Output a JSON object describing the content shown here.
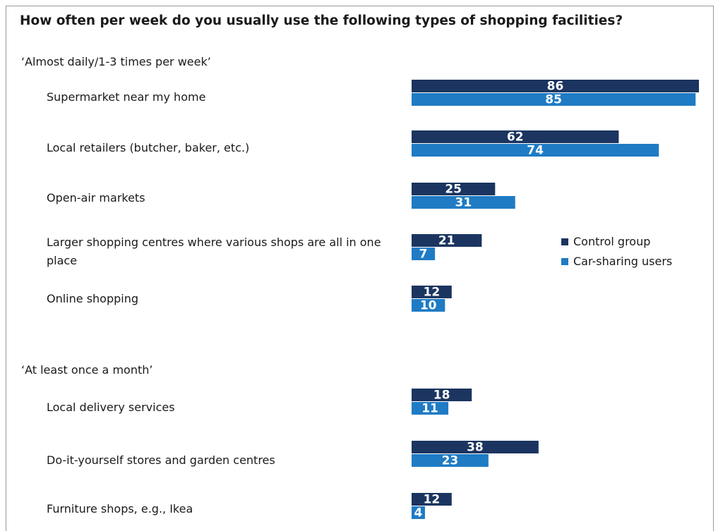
{
  "chart_data": {
    "type": "bar",
    "orientation": "horizontal",
    "title": "How often per week do you usually use the following types of shopping facilities?",
    "sections": [
      {
        "label": "‘Almost daily/1-3 times per week’",
        "categories": [
          "Supermarket near my home",
          "Local retailers (butcher, baker, etc.)",
          "Open-air markets",
          "Larger shopping centres where various shops are all in one place",
          "Online shopping"
        ]
      },
      {
        "label": "‘At least once a month’",
        "categories": [
          "Local delivery services",
          "Do-it-yourself stores and garden centres",
          "Furniture shops, e.g., Ikea"
        ]
      }
    ],
    "categories": [
      "Supermarket near my home",
      "Local retailers (butcher, baker, etc.)",
      "Open-air markets",
      "Larger shopping centres where various shops are all in one place",
      "Online shopping",
      "Local delivery services",
      "Do-it-yourself stores and garden centres",
      "Furniture shops, e.g., Ikea"
    ],
    "series": [
      {
        "name": "Control group",
        "color": "#1b3560",
        "values": [
          86,
          62,
          25,
          21,
          12,
          18,
          38,
          12
        ]
      },
      {
        "name": "Car-sharing users",
        "color": "#1f7bc4",
        "values": [
          85,
          74,
          31,
          7,
          10,
          11,
          23,
          4
        ]
      }
    ],
    "xlim": [
      0,
      86
    ],
    "grid": false,
    "legend": "right"
  }
}
